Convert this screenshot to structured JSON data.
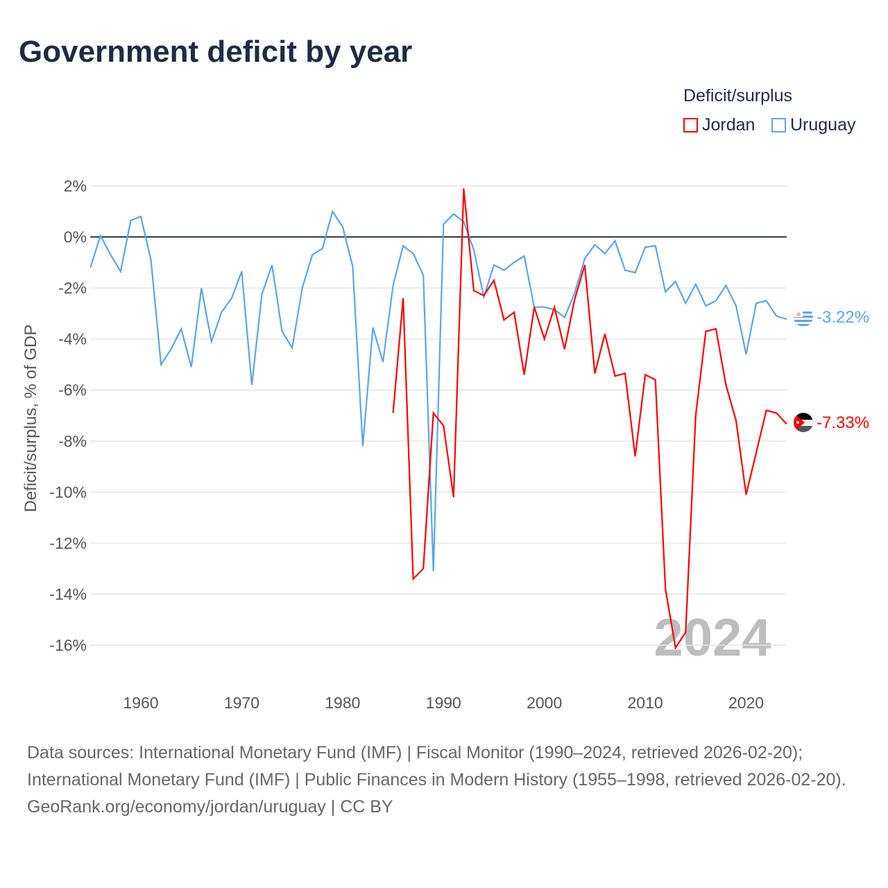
{
  "title": "Government deficit by year",
  "legend": {
    "title": "Deficit/surplus",
    "items": [
      {
        "label": "Jordan",
        "color": "#ff0000"
      },
      {
        "label": "Uruguay",
        "color": "#5aa5e8"
      }
    ]
  },
  "watermark_year": "2024",
  "end_labels": {
    "uruguay": "-3.22%",
    "jordan": "-7.33%"
  },
  "sources": [
    "Data sources: International Monetary Fund (IMF) | Fiscal Monitor (1990–2024, retrieved 2026-02-20); International Monetary Fund (IMF) | Public Finances in Modern History (1955–1998, retrieved 2026-02-20).",
    "GeoRank.org/economy/jordan/uruguay | CC BY"
  ],
  "chart_data": {
    "type": "line",
    "title": "Government deficit by year",
    "xlabel": "",
    "ylabel": "Deficit/surplus, % of GDP",
    "xlim": [
      1955,
      2024
    ],
    "ylim": [
      -16,
      2
    ],
    "x_ticks": [
      1960,
      1970,
      1980,
      1990,
      2000,
      2010,
      2020
    ],
    "y_ticks": [
      2,
      0,
      -2,
      -4,
      -6,
      -8,
      -10,
      -12,
      -14,
      -16
    ],
    "y_tick_labels": [
      "2%",
      "0%",
      "-2%",
      "-4%",
      "-6%",
      "-8%",
      "-10%",
      "-12%",
      "-14%",
      "-16%"
    ],
    "series": [
      {
        "name": "Uruguay",
        "color": "#5aa5e8",
        "start_year": 1955,
        "values": [
          -1.2,
          0.05,
          -0.7,
          -1.35,
          0.65,
          0.8,
          -0.9,
          -5.0,
          -4.4,
          -3.6,
          -5.1,
          -2.0,
          -4.1,
          -2.95,
          -2.4,
          -1.35,
          -5.8,
          -2.25,
          -1.1,
          -3.7,
          -4.35,
          -2.0,
          -0.7,
          -0.45,
          1.0,
          0.4,
          -1.15,
          -8.2,
          -3.55,
          -4.9,
          -1.9,
          -0.35,
          -0.65,
          -1.5,
          -13.1,
          0.5,
          0.9,
          0.6,
          -0.5,
          -2.35,
          -1.1,
          -1.3,
          -1.0,
          -0.75,
          -2.75,
          -2.75,
          -2.85,
          -3.15,
          -2.2,
          -0.85,
          -0.3,
          -0.65,
          -0.15,
          -1.3,
          -1.4,
          -0.4,
          -0.35,
          -2.15,
          -1.75,
          -2.6,
          -1.85,
          -2.7,
          -2.5,
          -1.9,
          -2.7,
          -4.6,
          -2.6,
          -2.5,
          -3.1,
          -3.22
        ]
      },
      {
        "name": "Jordan",
        "color": "#ff0000",
        "start_year": 1985,
        "values": [
          -6.9,
          -2.4,
          -13.4,
          -13.0,
          -6.9,
          -7.4,
          -10.2,
          1.9,
          -2.1,
          -2.3,
          -1.7,
          -3.25,
          -2.95,
          -5.4,
          -2.75,
          -4.0,
          -2.75,
          -4.4,
          -2.45,
          -1.1,
          -5.35,
          -3.8,
          -5.45,
          -5.35,
          -8.6,
          -5.4,
          -5.6,
          -13.8,
          -16.1,
          -15.5,
          -7.0,
          -3.7,
          -3.6,
          -5.8,
          -7.2,
          -10.1,
          -8.45,
          -6.8,
          -6.9,
          -7.33
        ]
      }
    ],
    "grid": true,
    "legend_position": "top-right"
  }
}
